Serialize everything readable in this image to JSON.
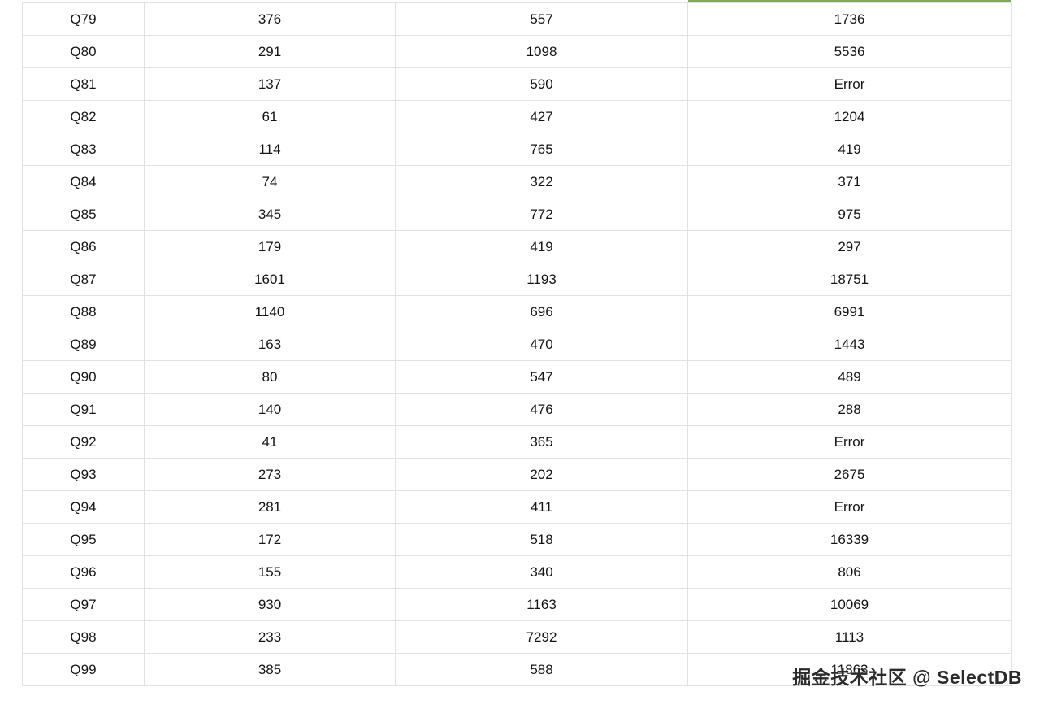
{
  "colors": {
    "green": "#7cac52",
    "green_border": "#a5c487",
    "red": "#e8372c",
    "border": "#e2e2e2"
  },
  "watermark": {
    "text": "掘金技术社区 @ SelectDB"
  },
  "chart_data": {
    "type": "table",
    "note_visible_columns": 4,
    "rows": [
      {
        "query": "Q79",
        "cells": [
          {
            "value": "376",
            "highlight": "green"
          },
          {
            "value": "557",
            "highlight": "none"
          },
          {
            "value": "1736",
            "highlight": "none"
          }
        ]
      },
      {
        "query": "Q80",
        "cells": [
          {
            "value": "291",
            "highlight": "green"
          },
          {
            "value": "1098",
            "highlight": "none"
          },
          {
            "value": "5536",
            "highlight": "none"
          }
        ]
      },
      {
        "query": "Q81",
        "cells": [
          {
            "value": "137",
            "highlight": "green"
          },
          {
            "value": "590",
            "highlight": "none"
          },
          {
            "value": "Error",
            "highlight": "red"
          }
        ]
      },
      {
        "query": "Q82",
        "cells": [
          {
            "value": "61",
            "highlight": "green"
          },
          {
            "value": "427",
            "highlight": "none"
          },
          {
            "value": "1204",
            "highlight": "none"
          }
        ]
      },
      {
        "query": "Q83",
        "cells": [
          {
            "value": "114",
            "highlight": "green"
          },
          {
            "value": "765",
            "highlight": "none"
          },
          {
            "value": "419",
            "highlight": "none"
          }
        ]
      },
      {
        "query": "Q84",
        "cells": [
          {
            "value": "74",
            "highlight": "green"
          },
          {
            "value": "322",
            "highlight": "none"
          },
          {
            "value": "371",
            "highlight": "none"
          }
        ]
      },
      {
        "query": "Q85",
        "cells": [
          {
            "value": "345",
            "highlight": "green"
          },
          {
            "value": "772",
            "highlight": "none"
          },
          {
            "value": "975",
            "highlight": "none"
          }
        ]
      },
      {
        "query": "Q86",
        "cells": [
          {
            "value": "179",
            "highlight": "green"
          },
          {
            "value": "419",
            "highlight": "none"
          },
          {
            "value": "297",
            "highlight": "none"
          }
        ]
      },
      {
        "query": "Q87",
        "cells": [
          {
            "value": "1601",
            "highlight": "none"
          },
          {
            "value": "1193",
            "highlight": "green"
          },
          {
            "value": "18751",
            "highlight": "none"
          }
        ]
      },
      {
        "query": "Q88",
        "cells": [
          {
            "value": "1140",
            "highlight": "none"
          },
          {
            "value": "696",
            "highlight": "green"
          },
          {
            "value": "6991",
            "highlight": "none"
          }
        ]
      },
      {
        "query": "Q89",
        "cells": [
          {
            "value": "163",
            "highlight": "green"
          },
          {
            "value": "470",
            "highlight": "none"
          },
          {
            "value": "1443",
            "highlight": "none"
          }
        ]
      },
      {
        "query": "Q90",
        "cells": [
          {
            "value": "80",
            "highlight": "green"
          },
          {
            "value": "547",
            "highlight": "none"
          },
          {
            "value": "489",
            "highlight": "none"
          }
        ]
      },
      {
        "query": "Q91",
        "cells": [
          {
            "value": "140",
            "highlight": "green"
          },
          {
            "value": "476",
            "highlight": "none"
          },
          {
            "value": "288",
            "highlight": "none"
          }
        ]
      },
      {
        "query": "Q92",
        "cells": [
          {
            "value": "41",
            "highlight": "green"
          },
          {
            "value": "365",
            "highlight": "none"
          },
          {
            "value": "Error",
            "highlight": "red"
          }
        ]
      },
      {
        "query": "Q93",
        "cells": [
          {
            "value": "273",
            "highlight": "none"
          },
          {
            "value": "202",
            "highlight": "green"
          },
          {
            "value": "2675",
            "highlight": "none"
          }
        ]
      },
      {
        "query": "Q94",
        "cells": [
          {
            "value": "281",
            "highlight": "green"
          },
          {
            "value": "411",
            "highlight": "none"
          },
          {
            "value": "Error",
            "highlight": "red"
          }
        ]
      },
      {
        "query": "Q95",
        "cells": [
          {
            "value": "172",
            "highlight": "green"
          },
          {
            "value": "518",
            "highlight": "none"
          },
          {
            "value": "16339",
            "highlight": "none"
          }
        ]
      },
      {
        "query": "Q96",
        "cells": [
          {
            "value": "155",
            "highlight": "green"
          },
          {
            "value": "340",
            "highlight": "none"
          },
          {
            "value": "806",
            "highlight": "none"
          }
        ]
      },
      {
        "query": "Q97",
        "cells": [
          {
            "value": "930",
            "highlight": "green"
          },
          {
            "value": "1163",
            "highlight": "none"
          },
          {
            "value": "10069",
            "highlight": "none"
          }
        ]
      },
      {
        "query": "Q98",
        "cells": [
          {
            "value": "233",
            "highlight": "green"
          },
          {
            "value": "7292",
            "highlight": "none"
          },
          {
            "value": "1113",
            "highlight": "none"
          }
        ]
      },
      {
        "query": "Q99",
        "cells": [
          {
            "value": "385",
            "highlight": "green"
          },
          {
            "value": "588",
            "highlight": "none"
          },
          {
            "value": "11863",
            "highlight": "none"
          }
        ]
      }
    ]
  }
}
